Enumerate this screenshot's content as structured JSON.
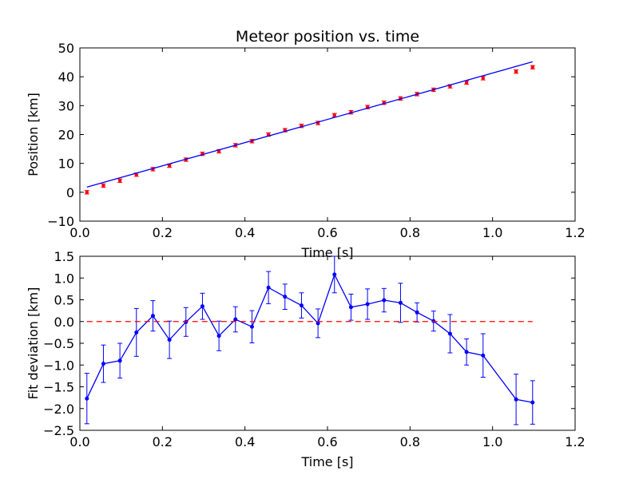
{
  "chart_data": [
    {
      "type": "scatter",
      "title": "Meteor position vs. time",
      "xlabel": "Time [s]",
      "ylabel": "Position [km]",
      "xlim": [
        0,
        1.2
      ],
      "ylim": [
        -10,
        50
      ],
      "xticks": [
        "0.0",
        "0.2",
        "0.4",
        "0.6",
        "0.8",
        "1.0",
        "1.2"
      ],
      "yticks": [
        "−10",
        "0",
        "10",
        "20",
        "30",
        "40",
        "50"
      ],
      "grid": false,
      "series": [
        {
          "kind": "scatter-errorbar",
          "color": "#ff0000",
          "x": [
            0.017,
            0.057,
            0.097,
            0.137,
            0.177,
            0.217,
            0.257,
            0.297,
            0.337,
            0.377,
            0.417,
            0.457,
            0.497,
            0.537,
            0.577,
            0.617,
            0.657,
            0.697,
            0.737,
            0.777,
            0.817,
            0.857,
            0.897,
            0.937,
            0.977,
            1.057,
            1.097
          ],
          "y": [
            0.0,
            2.3,
            4.0,
            6.1,
            8.0,
            9.2,
            11.3,
            13.3,
            14.2,
            16.3,
            17.7,
            20.0,
            21.5,
            23.0,
            24.0,
            26.7,
            27.7,
            29.5,
            31.0,
            32.5,
            34.0,
            35.5,
            36.7,
            38.0,
            39.5,
            41.8,
            43.3
          ],
          "yerr": 0.6
        },
        {
          "kind": "line",
          "color": "#0000ff",
          "x": [
            0.017,
            1.097
          ],
          "y": [
            1.8,
            45.2
          ]
        }
      ]
    },
    {
      "type": "line",
      "xlabel": "Time [s]",
      "ylabel": "Fit deviation [km]",
      "xlim": [
        0,
        1.2
      ],
      "ylim": [
        -2.5,
        1.5
      ],
      "xticks": [
        "0.0",
        "0.2",
        "0.4",
        "0.6",
        "0.8",
        "1.0",
        "1.2"
      ],
      "yticks": [
        "−2.5",
        "−2.0",
        "−1.5",
        "−1.0",
        "−0.5",
        "0.0",
        "0.5",
        "1.0",
        "1.5"
      ],
      "grid": false,
      "series": [
        {
          "kind": "line-errorbar",
          "color": "#0000ff",
          "x": [
            0.017,
            0.057,
            0.097,
            0.137,
            0.177,
            0.217,
            0.257,
            0.297,
            0.337,
            0.377,
            0.417,
            0.457,
            0.497,
            0.537,
            0.577,
            0.617,
            0.657,
            0.697,
            0.737,
            0.777,
            0.817,
            0.857,
            0.897,
            0.937,
            0.977,
            1.057,
            1.097
          ],
          "y": [
            -1.77,
            -0.97,
            -0.9,
            -0.25,
            0.13,
            -0.42,
            -0.01,
            0.35,
            -0.33,
            0.05,
            -0.12,
            0.78,
            0.57,
            0.37,
            -0.04,
            1.08,
            0.33,
            0.4,
            0.49,
            0.43,
            0.21,
            0.01,
            -0.28,
            -0.7,
            -0.78,
            -1.79,
            -1.86
          ],
          "yerr": [
            0.58,
            0.43,
            0.4,
            0.55,
            0.35,
            0.43,
            0.33,
            0.3,
            0.34,
            0.29,
            0.37,
            0.37,
            0.29,
            0.29,
            0.33,
            0.42,
            0.3,
            0.35,
            0.27,
            0.45,
            0.22,
            0.23,
            0.44,
            0.3,
            0.5,
            0.58,
            0.5
          ]
        },
        {
          "kind": "hline-dashed",
          "color": "#ff0000",
          "x": [
            0.017,
            1.097
          ],
          "y": [
            0,
            0
          ]
        }
      ]
    }
  ]
}
